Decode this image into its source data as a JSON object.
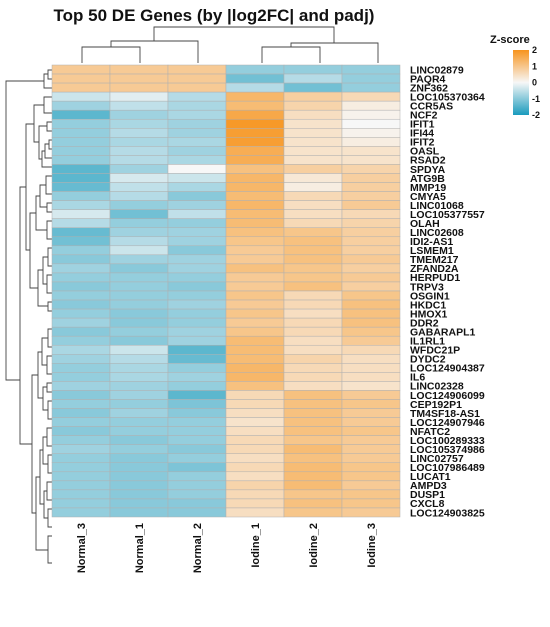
{
  "chart_data": {
    "type": "heatmap",
    "title": "Top 50 DE Genes (by |log2FC| and padj)",
    "legend": {
      "title": "Z-score",
      "ticks": [
        2,
        1,
        0,
        -1,
        -2
      ],
      "range": [
        -2,
        2
      ],
      "placement": "top-right",
      "colors": {
        "low": "#1a9bbd",
        "mid": "#f7f7f7",
        "high": "#f7941d"
      }
    },
    "columns": [
      "Normal_3",
      "Normal_1",
      "Normal_2",
      "Iodine_1",
      "Iodine_2",
      "Iodine_3"
    ],
    "rows": [
      "LINC02879",
      "PAQR4",
      "ZNF362",
      "LOC105370364",
      "CCR5AS",
      "NCF2",
      "IFIT1",
      "IFI44",
      "IFIT2",
      "OASL",
      "RSAD2",
      "SPDYA",
      "ATG9B",
      "MMP19",
      "CMYA5",
      "LINC01068",
      "LOC105377557",
      "OLAH",
      "LINC02608",
      "IDI2-AS1",
      "LSMEM1",
      "TMEM217",
      "ZFAND2A",
      "HERPUD1",
      "TRPV3",
      "OSGIN1",
      "HKDC1",
      "HMOX1",
      "DDR2",
      "GABARAPL1",
      "IL1RL1",
      "WFDC21P",
      "DYDC2",
      "LOC124904387",
      "IL6",
      "LINC02328",
      "LOC124906099",
      "CEP192P1",
      "TM4SF18-AS1",
      "LOC124907946",
      "NFATC2",
      "LOC100289333",
      "LOC105374986",
      "LINC02757",
      "LOC107986489",
      "LUCAT1",
      "AMPD3",
      "DUSP1",
      "CXCL8",
      "LOC124903825"
    ],
    "values": [
      [
        0.9,
        0.9,
        0.9,
        -0.9,
        -0.9,
        -0.9
      ],
      [
        0.9,
        0.9,
        0.9,
        -1.2,
        -0.6,
        -0.9
      ],
      [
        0.9,
        0.9,
        0.9,
        -0.6,
        -1.2,
        -0.9
      ],
      [
        -0.4,
        -0.2,
        -0.6,
        1.3,
        0.8,
        0.6
      ],
      [
        -0.8,
        -0.5,
        -0.7,
        1.2,
        0.7,
        0.2
      ],
      [
        -1.4,
        -0.8,
        -0.7,
        1.6,
        0.5,
        0.1
      ],
      [
        -0.9,
        -0.7,
        -0.8,
        1.9,
        0.4,
        0.0
      ],
      [
        -0.9,
        -0.6,
        -0.8,
        1.8,
        0.4,
        0.1
      ],
      [
        -0.9,
        -0.7,
        -0.7,
        1.8,
        0.4,
        0.2
      ],
      [
        -0.9,
        -0.6,
        -0.8,
        1.5,
        0.4,
        0.4
      ],
      [
        -0.9,
        -0.6,
        -0.7,
        1.5,
        0.4,
        0.4
      ],
      [
        -1.4,
        -0.8,
        0.0,
        1.1,
        0.8,
        0.7
      ],
      [
        -1.4,
        -0.3,
        -0.4,
        1.3,
        0.3,
        0.8
      ],
      [
        -1.3,
        -0.5,
        -0.7,
        1.3,
        0.2,
        0.8
      ],
      [
        -0.9,
        -0.6,
        -1.0,
        1.2,
        0.6,
        0.8
      ],
      [
        -0.7,
        -0.9,
        -0.8,
        1.3,
        0.5,
        0.9
      ],
      [
        -0.3,
        -1.2,
        -0.5,
        1.2,
        0.5,
        0.6
      ],
      [
        -0.6,
        -0.9,
        -0.9,
        1.2,
        0.6,
        0.7
      ],
      [
        -1.3,
        -0.8,
        -0.8,
        1.1,
        1.0,
        0.8
      ],
      [
        -1.2,
        -0.6,
        -0.8,
        1.0,
        1.1,
        0.8
      ],
      [
        -0.9,
        -0.4,
        -1.0,
        0.9,
        1.1,
        0.8
      ],
      [
        -1.0,
        -0.8,
        -0.8,
        0.9,
        1.1,
        0.9
      ],
      [
        -0.8,
        -1.0,
        -0.8,
        1.1,
        1.0,
        0.8
      ],
      [
        -0.9,
        -0.9,
        -0.9,
        0.9,
        1.0,
        0.9
      ],
      [
        -1.0,
        -0.9,
        -1.0,
        0.9,
        1.1,
        0.8
      ],
      [
        -0.9,
        -0.9,
        -0.9,
        1.0,
        0.6,
        1.0
      ],
      [
        -1.0,
        -0.9,
        -0.8,
        0.9,
        0.6,
        1.1
      ],
      [
        -0.9,
        -1.0,
        -0.9,
        1.0,
        0.5,
        1.1
      ],
      [
        -0.8,
        -1.0,
        -0.9,
        0.9,
        0.6,
        1.1
      ],
      [
        -1.0,
        -0.9,
        -0.8,
        1.0,
        0.6,
        1.0
      ],
      [
        -0.9,
        -1.0,
        -0.8,
        1.2,
        0.5,
        0.9
      ],
      [
        -0.7,
        -0.4,
        -1.4,
        1.2,
        0.5,
        0.6
      ],
      [
        -0.8,
        -0.6,
        -1.3,
        1.2,
        0.7,
        0.5
      ],
      [
        -0.9,
        -0.7,
        -0.9,
        1.3,
        0.6,
        0.5
      ],
      [
        -0.9,
        -0.7,
        -0.8,
        1.3,
        0.6,
        0.5
      ],
      [
        -0.8,
        -0.8,
        -0.9,
        1.1,
        0.5,
        0.4
      ],
      [
        -1.0,
        -0.8,
        -1.4,
        0.6,
        1.1,
        0.9
      ],
      [
        -0.9,
        -0.9,
        -1.1,
        0.6,
        1.1,
        1.0
      ],
      [
        -1.0,
        -0.8,
        -1.0,
        0.5,
        1.1,
        0.9
      ],
      [
        -0.9,
        -0.9,
        -0.9,
        0.4,
        1.1,
        0.9
      ],
      [
        -1.0,
        -0.9,
        -0.9,
        0.5,
        1.1,
        1.0
      ],
      [
        -0.9,
        -1.0,
        -0.9,
        0.6,
        1.0,
        0.9
      ],
      [
        -0.8,
        -0.9,
        -1.0,
        0.6,
        1.2,
        0.9
      ],
      [
        -0.9,
        -1.0,
        -0.9,
        0.5,
        1.1,
        0.9
      ],
      [
        -0.9,
        -1.0,
        -1.1,
        0.6,
        1.2,
        1.0
      ],
      [
        -0.9,
        -1.0,
        -0.9,
        0.5,
        1.2,
        1.0
      ],
      [
        -0.9,
        -1.0,
        -0.9,
        0.7,
        1.2,
        0.9
      ],
      [
        -0.9,
        -1.0,
        -0.9,
        0.6,
        1.0,
        1.0
      ],
      [
        -0.9,
        -1.0,
        -1.0,
        0.6,
        1.1,
        1.0
      ],
      [
        -0.9,
        -1.0,
        -1.0,
        0.5,
        1.0,
        0.9
      ]
    ]
  }
}
